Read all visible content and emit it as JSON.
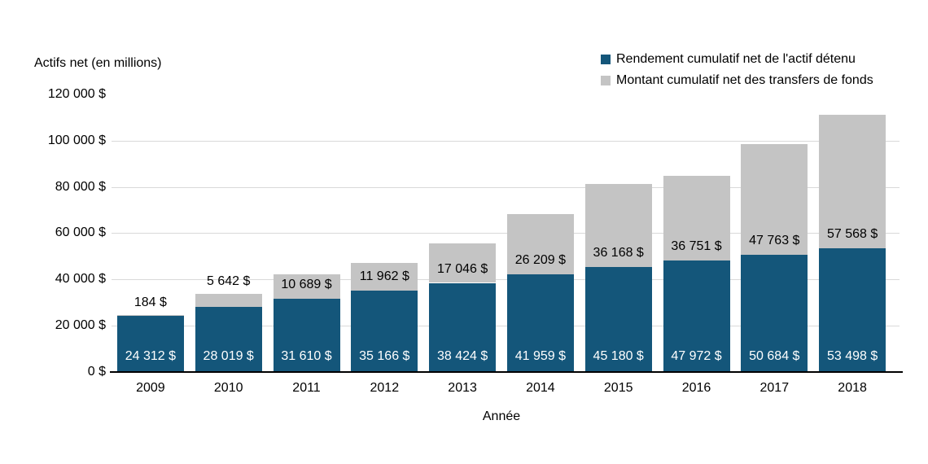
{
  "chart_data": {
    "type": "bar",
    "stacked": true,
    "title": "Actifs net (en millions)",
    "xlabel": "Année",
    "categories": [
      "2009",
      "2010",
      "2011",
      "2012",
      "2013",
      "2014",
      "2015",
      "2016",
      "2017",
      "2018"
    ],
    "series": [
      {
        "name": "Rendement cumulatif net de l'actif détenu",
        "color": "#14567A",
        "label_color": "#ffffff",
        "values": [
          24312,
          28019,
          31610,
          35166,
          38424,
          41959,
          45180,
          47972,
          50684,
          53498
        ],
        "labels": [
          "24 312 $",
          "28 019 $",
          "31 610 $",
          "35 166 $",
          "38 424 $",
          "41 959 $",
          "45 180 $",
          "47 972 $",
          "50 684 $",
          "53 498 $"
        ]
      },
      {
        "name": "Montant cumulatif net des transfers de fonds",
        "color": "#C4C4C4",
        "label_color": "#000000",
        "values": [
          184,
          5642,
          10689,
          11962,
          17046,
          26209,
          36168,
          36751,
          47763,
          57568
        ],
        "labels": [
          "184 $",
          "5 642 $",
          "10 689 $",
          "11 962 $",
          "17 046 $",
          "26 209 $",
          "36 168 $",
          "36 751 $",
          "47 763 $",
          "57 568 $"
        ]
      }
    ],
    "y_axis": {
      "min": 0,
      "max": 120000,
      "tick_step": 20000,
      "tick_labels": [
        "0 $",
        "20 000 $",
        "40 000 $",
        "60 000 $",
        "80 000 $",
        "100 000 $",
        "120 000 $"
      ]
    },
    "legend_position": "top-right",
    "grid": "horizontal",
    "gridline_color": "#d9d9d9"
  }
}
